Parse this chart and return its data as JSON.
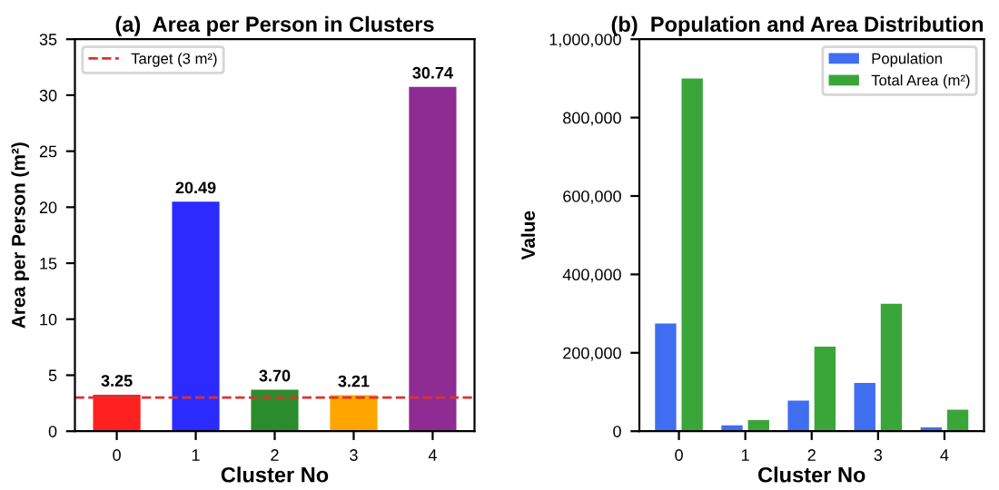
{
  "chart_data": [
    {
      "type": "bar",
      "title": "(a)  Area per Person in Clusters",
      "xlabel": "Cluster No",
      "ylabel": "Area per Person (m²)",
      "categories": [
        "0",
        "1",
        "2",
        "3",
        "4"
      ],
      "values": [
        3.25,
        20.49,
        3.7,
        3.21,
        30.74
      ],
      "colors": [
        "#ff2020",
        "#2b2bff",
        "#2a8c2a",
        "#ffa500",
        "#8e2c94"
      ],
      "value_labels": [
        "3.25",
        "20.49",
        "3.70",
        "3.21",
        "30.74"
      ],
      "ylim": [
        0,
        35
      ],
      "yticks": [
        0,
        5,
        10,
        15,
        20,
        25,
        30,
        35
      ],
      "ref_lines": [
        {
          "axis": "y",
          "value": 3,
          "label": "Target (3 m²)",
          "color": "#e03030",
          "line_style": "dashed"
        }
      ],
      "legend": "top left"
    },
    {
      "type": "bar",
      "title": "(b)  Population and Area Distribution",
      "xlabel": "Cluster No",
      "ylabel": "Value",
      "categories": [
        "0",
        "1",
        "2",
        "3",
        "4"
      ],
      "series": [
        {
          "name": "Population",
          "color": "#3f6ef0",
          "values": [
            275000,
            15000,
            78000,
            123000,
            10000
          ]
        },
        {
          "name": "Total Area (m²)",
          "color": "#3aa63a",
          "values": [
            900000,
            28000,
            216000,
            325000,
            55000
          ]
        }
      ],
      "ylim": [
        0,
        1000000
      ],
      "yticks": [
        {
          "value": 0,
          "label": "0"
        },
        {
          "value": 200000,
          "label": "200,000"
        },
        {
          "value": 400000,
          "label": "400,000"
        },
        {
          "value": 600000,
          "label": "600,000"
        },
        {
          "value": 800000,
          "label": "800,000"
        },
        {
          "value": 1000000,
          "label": "1,000,000"
        }
      ],
      "legend": "top right"
    }
  ]
}
